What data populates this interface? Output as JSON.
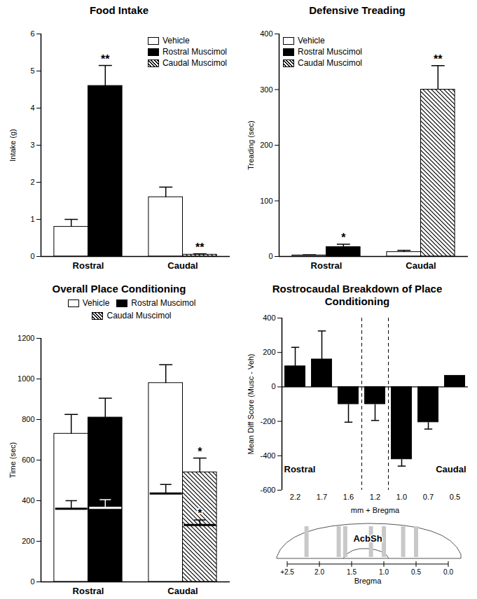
{
  "chart_data": [
    {
      "type": "bar",
      "title": "Food Intake",
      "categories": [
        "Rostral",
        "Caudal"
      ],
      "ylabel": "Intake (g)",
      "ylim": [
        0,
        6
      ],
      "yticks": [
        0,
        1,
        2,
        3,
        4,
        5,
        6
      ],
      "legend": "upper right",
      "series": [
        {
          "name": "Vehicle",
          "color": "#ffffff",
          "values": [
            0.8,
            1.6
          ],
          "errors": [
            0.2,
            0.27
          ],
          "annotations": [
            null,
            null
          ]
        },
        {
          "name": "Rostral Muscimol",
          "color": "#000000",
          "values": [
            4.6,
            null
          ],
          "errors": [
            0.55,
            null
          ],
          "annotations": [
            "**",
            null
          ]
        },
        {
          "name": "Caudal Muscimol",
          "color": "#000000",
          "marker": "hatched",
          "values": [
            null,
            0.05
          ],
          "errors": [
            null,
            0.02
          ],
          "annotations": [
            null,
            "**"
          ]
        }
      ]
    },
    {
      "type": "bar",
      "title": "Defensive Treading",
      "categories": [
        "Rostral",
        "Caudal"
      ],
      "ylabel": "Treading (sec)",
      "ylim": [
        0,
        400
      ],
      "yticks": [
        0,
        100,
        200,
        300,
        400
      ],
      "legend": "upper left",
      "series": [
        {
          "name": "Vehicle",
          "color": "#ffffff",
          "values": [
            2,
            8
          ],
          "errors": [
            1,
            3
          ],
          "annotations": [
            null,
            null
          ]
        },
        {
          "name": "Rostral Muscimol",
          "color": "#000000",
          "values": [
            17,
            null
          ],
          "errors": [
            5,
            null
          ],
          "annotations": [
            "*",
            null
          ]
        },
        {
          "name": "Caudal Muscimol",
          "color": "#000000",
          "marker": "hatched",
          "values": [
            null,
            300
          ],
          "errors": [
            null,
            43
          ],
          "annotations": [
            null,
            "**"
          ]
        }
      ]
    },
    {
      "type": "bar",
      "title": "Overall Place Conditioning",
      "categories": [
        "Rostral",
        "Caudal"
      ],
      "ylabel": "Time (sec)",
      "ylim": [
        0,
        1200
      ],
      "yticks": [
        0,
        200,
        400,
        600,
        800,
        1000,
        1200
      ],
      "legend": "top",
      "series": [
        {
          "name": "Vehicle",
          "color": "#ffffff",
          "values": [
            730,
            980
          ],
          "errors": [
            95,
            90
          ],
          "annotations": [
            null,
            null
          ],
          "inner_values": [
            360,
            435
          ],
          "inner_errors": [
            40,
            45
          ],
          "inner_annotations": [
            null,
            null
          ]
        },
        {
          "name": "Rostral Muscimol",
          "color": "#000000",
          "values": [
            810,
            null
          ],
          "errors": [
            95,
            null
          ],
          "annotations": [
            null,
            null
          ],
          "inner_values": [
            365,
            null
          ],
          "inner_errors": [
            40,
            null
          ],
          "inner_annotations": [
            null,
            null
          ]
        },
        {
          "name": "Caudal Muscimol",
          "color": "#000000",
          "marker": "hatched",
          "values": [
            null,
            540
          ],
          "errors": [
            null,
            70
          ],
          "annotations": [
            null,
            "*"
          ],
          "inner_values": [
            null,
            280
          ],
          "inner_errors": [
            null,
            25
          ],
          "inner_annotations": [
            null,
            "*"
          ]
        }
      ]
    },
    {
      "type": "bar",
      "title": "Rostrocaudal Breakdown of Place Conditioning",
      "categories": [
        "2.2",
        "1.7",
        "1.6",
        "1.2",
        "1.0",
        "0.7",
        "0.5"
      ],
      "values": [
        120,
        160,
        -100,
        -100,
        -420,
        -205,
        65
      ],
      "errors": [
        110,
        165,
        105,
        95,
        40,
        40,
        null
      ],
      "color": "#000000",
      "ylabel": "Mean Diff Score (Musc - Veh)",
      "xlabel": "mm + Bregma",
      "ylim": [
        -600,
        400
      ],
      "yticks": [
        -600,
        -400,
        -200,
        0,
        200,
        400
      ],
      "boundary_category": "1.2",
      "annotations": [
        {
          "text": "Rostral",
          "x": "2.2",
          "y": -480
        },
        {
          "text": "Caudal",
          "x": "0.5",
          "y": -480
        }
      ],
      "inset": {
        "label": "AcbSh",
        "scale_ticks": [
          {
            "value": 2.5,
            "label": "+2.5"
          },
          {
            "value": 2.0,
            "label": "2.0"
          },
          {
            "value": 1.5,
            "label": "1.5"
          },
          {
            "value": 1.0,
            "label": "1.0"
          },
          {
            "value": 0.5,
            "label": "0.5"
          },
          {
            "value": 0.0,
            "label": "0.0"
          }
        ],
        "scale_label": "Bregma"
      }
    }
  ]
}
